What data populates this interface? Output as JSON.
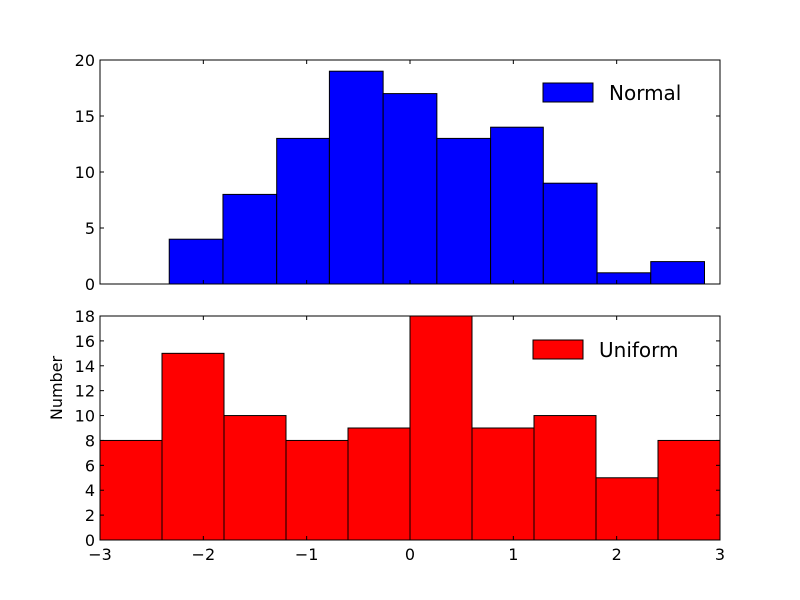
{
  "chart_data": [
    {
      "type": "bar",
      "subtype": "histogram",
      "series": [
        {
          "name": "Normal",
          "color": "#0000ff",
          "bin_edges": [
            -2.33,
            -1.81,
            -1.29,
            -0.78,
            -0.26,
            0.26,
            0.78,
            1.29,
            1.81,
            2.33,
            2.85
          ],
          "values": [
            4,
            8,
            13,
            19,
            17,
            13,
            14,
            9,
            1,
            2
          ]
        }
      ],
      "xlim": [
        -3,
        3
      ],
      "ylim": [
        0,
        20
      ],
      "yticks": [
        "0",
        "5",
        "10",
        "15",
        "20"
      ],
      "xlabel": "",
      "ylabel": "",
      "legend": "top-right",
      "grid": false
    },
    {
      "type": "bar",
      "subtype": "histogram",
      "series": [
        {
          "name": "Uniform",
          "color": "#ff0000",
          "bin_edges": [
            -3.0,
            -2.4,
            -1.8,
            -1.2,
            -0.6,
            0.0,
            0.6,
            1.2,
            1.8,
            2.4,
            3.0
          ],
          "values": [
            8,
            15,
            10,
            8,
            9,
            18,
            9,
            10,
            5,
            8
          ]
        }
      ],
      "xlim": [
        -3,
        3
      ],
      "ylim": [
        0,
        18
      ],
      "xticks": [
        "−3",
        "−2",
        "−1",
        "0",
        "1",
        "2",
        "3"
      ],
      "yticks": [
        "0",
        "2",
        "4",
        "6",
        "8",
        "10",
        "12",
        "14",
        "16",
        "18"
      ],
      "xlabel": "",
      "ylabel": "Number",
      "legend": "top-right",
      "grid": false
    }
  ]
}
